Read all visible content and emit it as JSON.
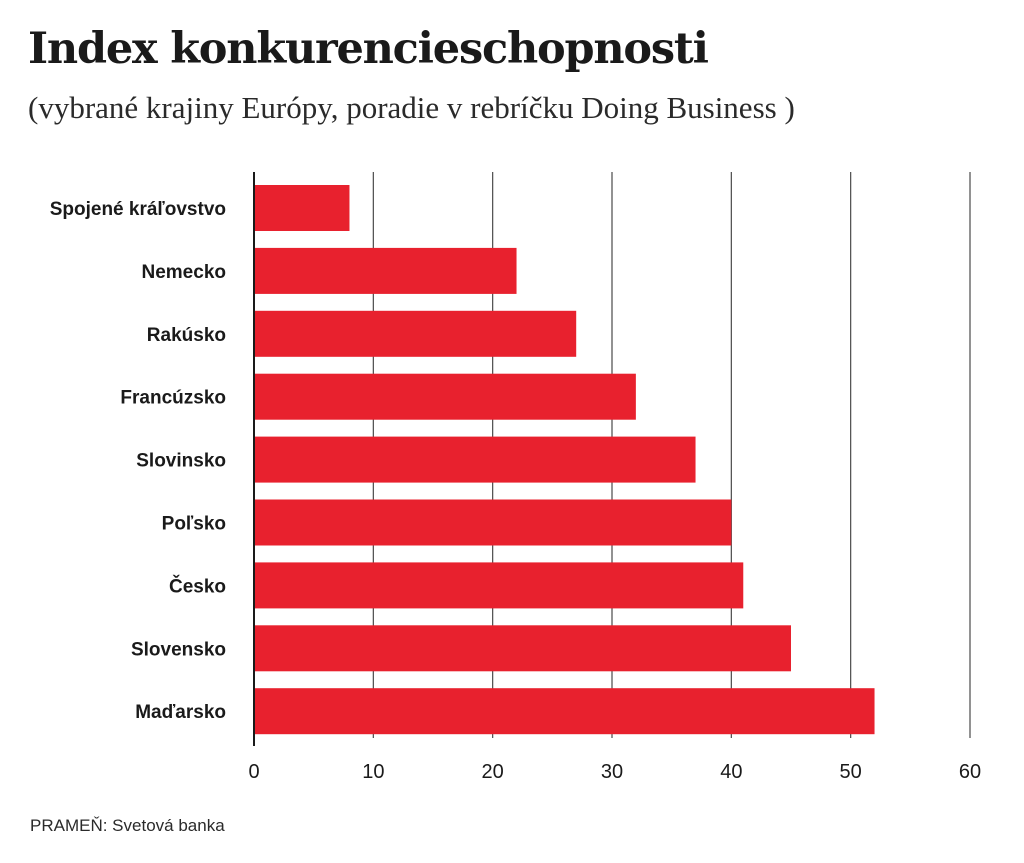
{
  "header": {
    "title": "Index konkurencieschopnosti",
    "subtitle": "(vybrané krajiny Európy, poradie v rebríčku Doing Business )"
  },
  "source": {
    "text": "PRAMEŇ: Svetová banka"
  },
  "colors": {
    "bar": "#e8212e",
    "grid": "#4a4a4a",
    "axis": "#1a1a1a"
  },
  "chart_data": {
    "type": "bar",
    "orientation": "horizontal",
    "title": "Index konkurencieschopnosti",
    "subtitle": "(vybrané krajiny Európy, poradie v rebríčku Doing Business )",
    "xlabel": "",
    "ylabel": "",
    "categories": [
      "Spojené kráľovstvo",
      "Nemecko",
      "Rakúsko",
      "Francúzsko",
      "Slovinsko",
      "Poľsko",
      "Česko",
      "Slovensko",
      "Maďarsko"
    ],
    "values": [
      8,
      22,
      27,
      32,
      37,
      40,
      41,
      45,
      52
    ],
    "xlim": [
      0,
      60
    ],
    "xticks": [
      0,
      10,
      20,
      30,
      40,
      50,
      60
    ],
    "grid": true,
    "source": "PRAMEŇ: Svetová banka"
  }
}
